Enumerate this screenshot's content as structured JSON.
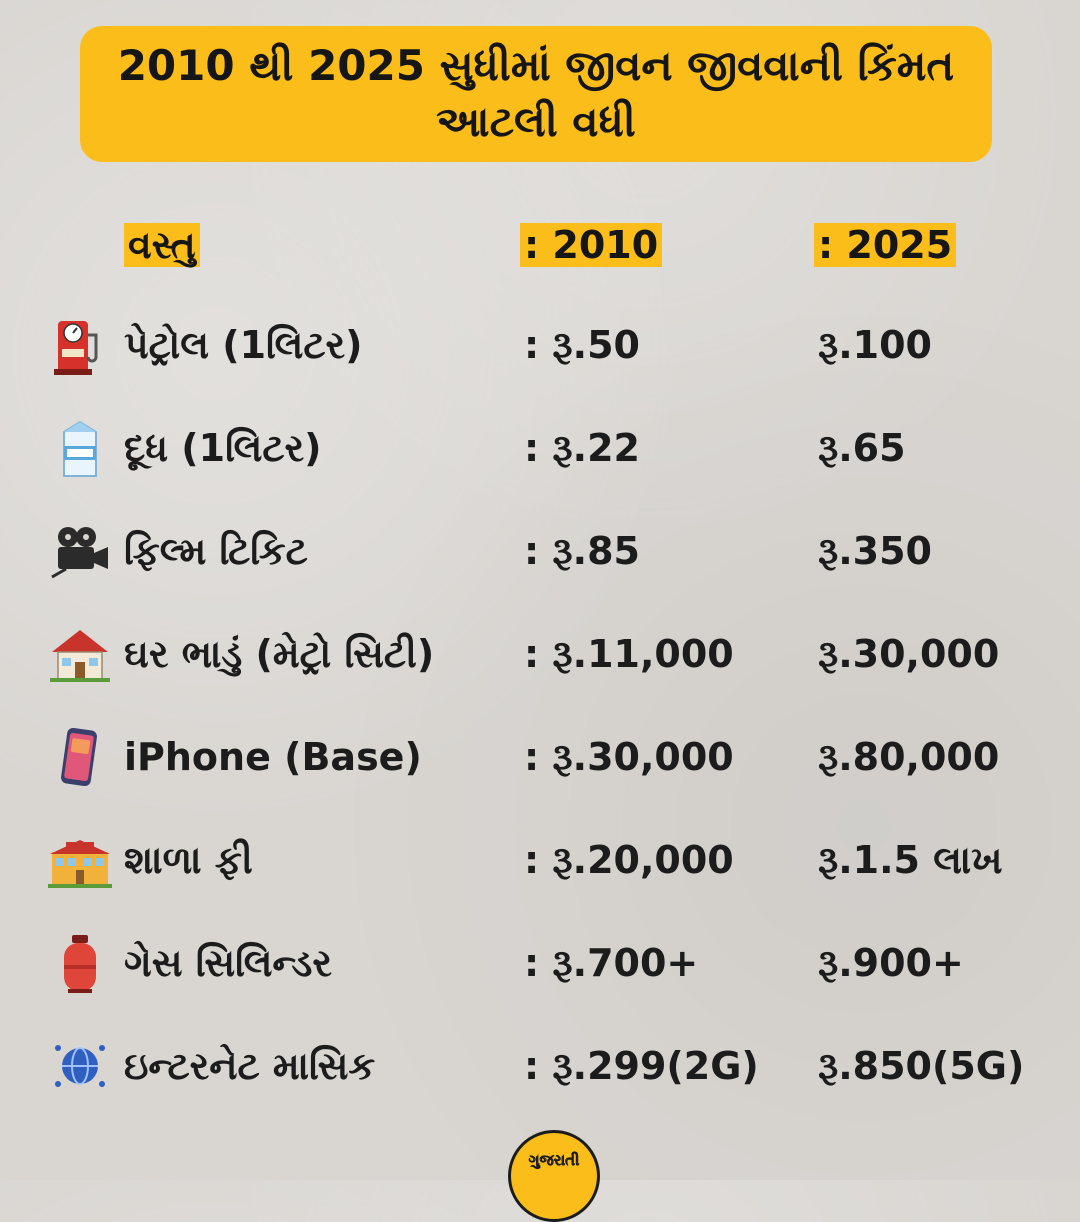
{
  "title": {
    "line1": "2010 થી 2025 સુધીમાં જીવન જીવવાની કિંમત",
    "line2": "આટલી વધી"
  },
  "headers": {
    "item": "વસ્તુ",
    "col2010": ": 2010",
    "col2025": ": 2025"
  },
  "rows": [
    {
      "icon": "fuel-pump-icon",
      "item": "પેટ્રોલ (1લિટર)",
      "v2010": ":  રૂ.50",
      "v2025": "રૂ.100"
    },
    {
      "icon": "milk-carton-icon",
      "item": " દૂધ (1લિટર)",
      "v2010": ": રૂ.22",
      "v2025": "રૂ.65"
    },
    {
      "icon": "movie-camera-icon",
      "item": "ફિલ્મ ટિકિટ",
      "v2010": ": રૂ.85",
      "v2025": "રૂ.350"
    },
    {
      "icon": "house-icon",
      "item": "ઘર ભાડું (મેટ્રો સિટી)",
      "v2010": ": રૂ.11,000",
      "v2025": "રૂ.30,000"
    },
    {
      "icon": "mobile-phone-icon",
      "item": "iPhone (Base)",
      "v2010": ": રૂ.30,000",
      "v2025": "રૂ.80,000"
    },
    {
      "icon": "school-icon",
      "item": "શાળા ફી",
      "v2010": ": રૂ.20,000",
      "v2025": "રૂ.1.5 લાખ"
    },
    {
      "icon": "gas-cylinder-icon",
      "item": "ગેસ સિલિન્ડર",
      "v2010": ": રૂ.700+",
      "v2025": "રૂ.900+"
    },
    {
      "icon": "globe-network-icon",
      "item": "ઇન્ટરનેટ માસિક",
      "v2010": ": રૂ.299(2G)",
      "v2025": "રૂ.850(5G)"
    }
  ],
  "logo": {
    "text": "ગુજરાતી"
  },
  "colors": {
    "accent": "#fbbd1a",
    "background": "#d9d6d2",
    "text": "#161616"
  }
}
